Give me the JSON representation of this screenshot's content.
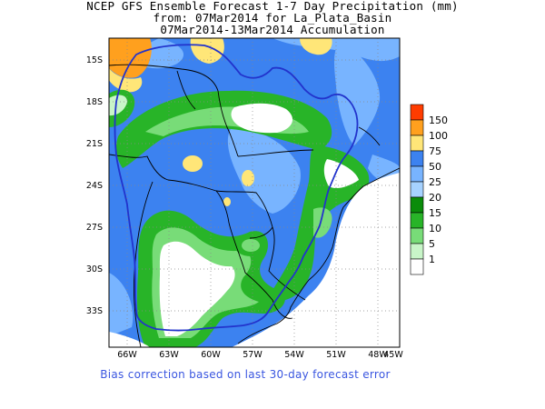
{
  "title": {
    "line1": "NCEP GFS Ensemble Forecast 1-7 Day Precipitation (mm)",
    "line2": "from: 07Mar2014   for La_Plata_Basin",
    "line3": "07Mar2014-13Mar2014 Accumulation"
  },
  "map": {
    "lat_labels": [
      "15S",
      "18S",
      "21S",
      "24S",
      "27S",
      "30S",
      "33S"
    ],
    "lon_labels": [
      "66W",
      "63W",
      "60W",
      "57W",
      "54W",
      "51W",
      "48W",
      "45W"
    ],
    "lat_range": [
      -36,
      -13
    ],
    "lon_range": [
      -68,
      -44
    ],
    "basin_outline_color": "#2233cc"
  },
  "legend": {
    "levels": [
      "1",
      "5",
      "10",
      "15",
      "20",
      "25",
      "50",
      "75",
      "100",
      "150"
    ],
    "colors": [
      "#ffffff",
      "#c8f5c8",
      "#78dc78",
      "#28b428",
      "#0a8c0a",
      "#a6d2ff",
      "#78b4ff",
      "#3c82f0",
      "#ffe678",
      "#ffa01e",
      "#ff3c00"
    ]
  },
  "footer": "Bias correction based on last 30-day forecast error"
}
